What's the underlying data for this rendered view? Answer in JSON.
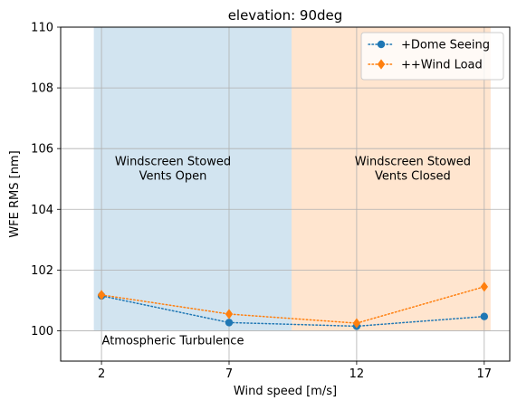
{
  "chart_data": {
    "type": "line",
    "title": "elevation: 90deg",
    "xlabel": "Wind speed [m/s]",
    "ylabel": "WFE RMS [nm]",
    "x": [
      2,
      7,
      12,
      17
    ],
    "xticks": [
      2,
      7,
      12,
      17
    ],
    "xlim": [
      0.4,
      18.0
    ],
    "ylim": [
      99.0,
      110.0
    ],
    "yticks": [
      100,
      102,
      104,
      106,
      108,
      110
    ],
    "grid": true,
    "legend_position": "top-right",
    "series": [
      {
        "name": "+Dome Seeing",
        "values": [
          101.15,
          100.27,
          100.15,
          100.47
        ],
        "color": "#1f77b4",
        "marker": "circle",
        "linestyle": "dotted"
      },
      {
        "name": "++Wind Load",
        "values": [
          101.18,
          100.55,
          100.25,
          101.45
        ],
        "color": "#ff7f0e",
        "marker": "diamond",
        "linestyle": "dotted"
      }
    ],
    "regions": [
      {
        "x_range": [
          1.7,
          9.45
        ],
        "y_range": [
          100,
          110
        ],
        "color": "#1f77b4",
        "label_lines": [
          "Windscreen Stowed",
          "Vents Open"
        ]
      },
      {
        "x_range": [
          9.45,
          17.25
        ],
        "y_range": [
          100,
          110
        ],
        "color": "#ff7f0e",
        "label_lines": [
          "Windscreen Stowed",
          "Vents Closed"
        ]
      }
    ],
    "annotations": [
      {
        "text": "Atmospheric Turbulence",
        "x": 4.8,
        "y": 99.55
      }
    ]
  }
}
